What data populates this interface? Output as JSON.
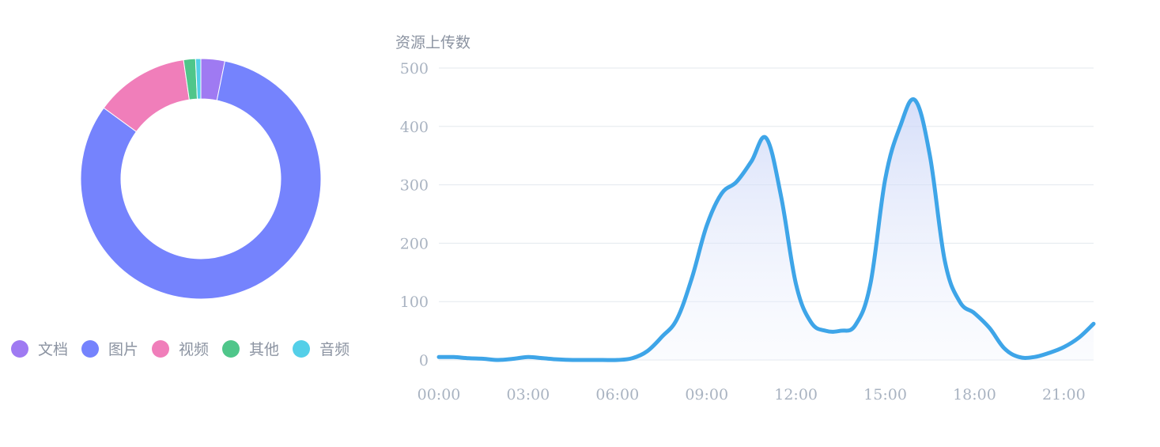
{
  "chart_data": [
    {
      "type": "pie",
      "subtype": "donut",
      "slices": [
        {
          "name": "文档",
          "value": 3.2,
          "color": "#9f7af2"
        },
        {
          "name": "图片",
          "value": 81.5,
          "color": "#7583fd"
        },
        {
          "name": "视频",
          "value": 12.6,
          "color": "#f07eba"
        },
        {
          "name": "其他",
          "value": 1.6,
          "color": "#4fc68a"
        },
        {
          "name": "音频",
          "value": 0.7,
          "color": "#54cfe8"
        }
      ],
      "legend_position": "bottom"
    },
    {
      "type": "area",
      "ylabel": "资源上传数",
      "ylim": [
        0,
        500
      ],
      "yticks": [
        "0",
        "100",
        "200",
        "300",
        "400",
        "500"
      ],
      "xticks": [
        "00:00",
        "03:00",
        "06:00",
        "09:00",
        "12:00",
        "15:00",
        "18:00",
        "21:00"
      ],
      "grid": true,
      "line_color": "#3ea5e8",
      "series": [
        {
          "x": [
            "00:00",
            "00:30",
            "01:00",
            "01:30",
            "02:00",
            "02:30",
            "03:00",
            "03:30",
            "04:00",
            "04:30",
            "05:00",
            "05:30",
            "06:00",
            "06:30",
            "07:00",
            "07:30",
            "08:00",
            "08:30",
            "09:00",
            "09:30",
            "10:00",
            "10:30",
            "11:00",
            "11:30",
            "12:00",
            "12:30",
            "13:00",
            "13:30",
            "14:00",
            "14:30",
            "15:00",
            "15:30",
            "16:00",
            "16:30",
            "17:00",
            "17:30",
            "18:00",
            "18:30",
            "19:00",
            "19:30",
            "20:00",
            "20:30",
            "21:00",
            "21:30",
            "22:00"
          ],
          "values": [
            5,
            5,
            3,
            2,
            0,
            2,
            5,
            3,
            1,
            0,
            0,
            0,
            0,
            3,
            15,
            40,
            70,
            140,
            230,
            285,
            305,
            340,
            380,
            280,
            130,
            65,
            50,
            50,
            60,
            130,
            310,
            400,
            445,
            350,
            170,
            100,
            80,
            55,
            20,
            5,
            5,
            12,
            22,
            38,
            62
          ]
        }
      ]
    }
  ]
}
